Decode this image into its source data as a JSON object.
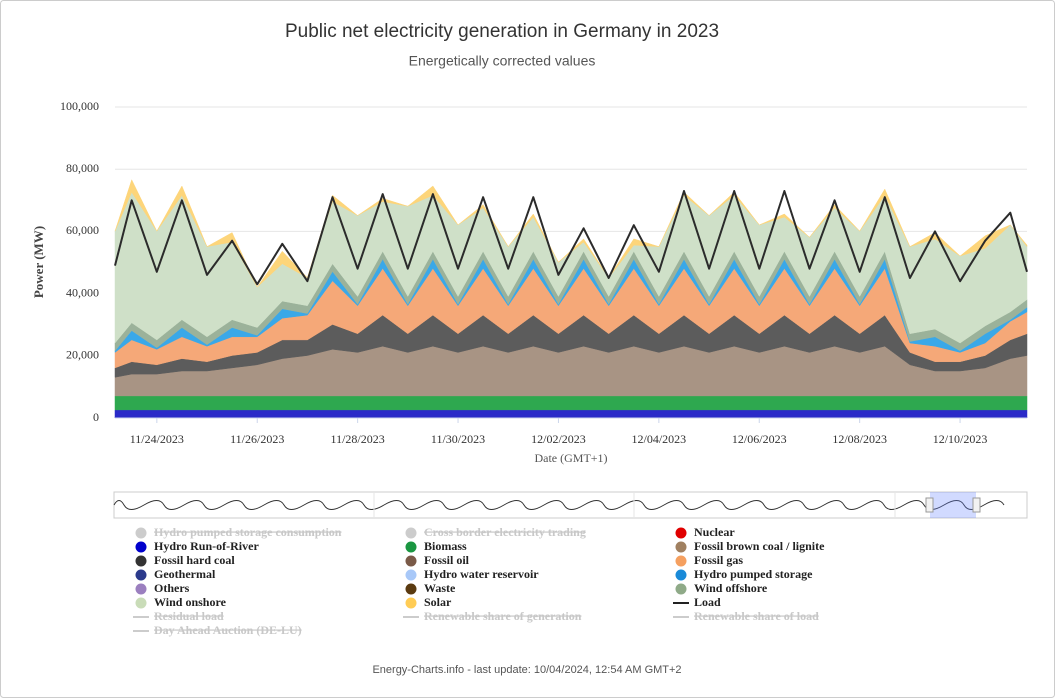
{
  "chart_data": {
    "type": "area",
    "title": "Public net electricity generation in Germany in 2023",
    "subtitle": "Energetically corrected values",
    "y_label": "Power (MW)",
    "x_label": "Date (GMT+1)",
    "credit": "Energy-Charts.info - last update: 10/04/2024, 12:54 AM GMT+2",
    "grid": true,
    "stacked": true,
    "x": [
      "11/23/2023 04:00",
      "11/23/2023 12:00",
      "11/24/2023 00:00",
      "11/24/2023 12:00",
      "11/25/2023 00:00",
      "11/25/2023 12:00",
      "11/26/2023 00:00",
      "11/26/2023 12:00",
      "11/27/2023 00:00",
      "11/27/2023 12:00",
      "11/28/2023 00:00",
      "11/28/2023 12:00",
      "11/29/2023 00:00",
      "11/29/2023 12:00",
      "11/30/2023 00:00",
      "11/30/2023 12:00",
      "12/01/2023 00:00",
      "12/01/2023 12:00",
      "12/02/2023 00:00",
      "12/02/2023 12:00",
      "12/03/2023 00:00",
      "12/03/2023 12:00",
      "12/04/2023 00:00",
      "12/04/2023 12:00",
      "12/05/2023 00:00",
      "12/05/2023 12:00",
      "12/06/2023 00:00",
      "12/06/2023 12:00",
      "12/07/2023 00:00",
      "12/07/2023 12:00",
      "12/08/2023 00:00",
      "12/08/2023 12:00",
      "12/09/2023 00:00",
      "12/09/2023 12:00",
      "12/10/2023 00:00",
      "12/10/2023 12:00",
      "12/11/2023 00:00",
      "12/11/2023 08:00"
    ],
    "xlim": [
      "11/23/2023 04:00",
      "12/11/2023 08:00"
    ],
    "xticks": [
      "11/24/2023",
      "11/26/2023",
      "11/28/2023",
      "11/30/2023",
      "12/02/2023",
      "12/04/2023",
      "12/06/2023",
      "12/08/2023",
      "12/10/2023"
    ],
    "ylim": [
      0,
      100000
    ],
    "yticks": [
      0,
      {
        "value": 20000,
        "label": "20,000"
      },
      {
        "value": 40000,
        "label": "40,000"
      },
      {
        "value": 60000,
        "label": "60,000"
      },
      {
        "value": 80000,
        "label": "80,000"
      },
      {
        "value": 100000,
        "label": "100,000"
      }
    ],
    "series": [
      {
        "name": "Hydro Run-of-River",
        "kind": "area",
        "color": "#2a2ac8",
        "values": [
          2600,
          2600,
          2600,
          2600,
          2600,
          2600,
          2600,
          2600,
          2600,
          2600,
          2600,
          2600,
          2600,
          2600,
          2600,
          2600,
          2600,
          2600,
          2600,
          2600,
          2600,
          2600,
          2600,
          2600,
          2600,
          2600,
          2600,
          2600,
          2600,
          2600,
          2600,
          2600,
          2600,
          2600,
          2600,
          2600,
          2600,
          2600
        ]
      },
      {
        "name": "Biomass",
        "kind": "area",
        "color": "#2ea84f",
        "values": [
          4500,
          4500,
          4500,
          4500,
          4500,
          4500,
          4500,
          4500,
          4500,
          4500,
          4500,
          4500,
          4500,
          4500,
          4500,
          4500,
          4500,
          4500,
          4500,
          4500,
          4500,
          4500,
          4500,
          4500,
          4500,
          4500,
          4500,
          4500,
          4500,
          4500,
          4500,
          4500,
          4500,
          4500,
          4500,
          4500,
          4500,
          4500
        ]
      },
      {
        "name": "Fossil brown coal / lignite",
        "kind": "area",
        "color": "#a89484",
        "values": [
          6000,
          7000,
          7000,
          8000,
          8000,
          9000,
          10000,
          12000,
          13000,
          15000,
          14000,
          16000,
          14000,
          16000,
          14000,
          16000,
          14000,
          16000,
          14000,
          16000,
          14000,
          16000,
          14000,
          16000,
          14000,
          16000,
          14000,
          16000,
          14000,
          16000,
          14000,
          16000,
          10000,
          8000,
          8000,
          9000,
          12000,
          13000
        ]
      },
      {
        "name": "Fossil hard coal",
        "kind": "area",
        "color": "#5c5c5c",
        "values": [
          3000,
          4000,
          3000,
          4000,
          3000,
          4000,
          4000,
          6000,
          5000,
          8000,
          6000,
          10000,
          6000,
          10000,
          6000,
          10000,
          6000,
          10000,
          6000,
          10000,
          6000,
          10000,
          6000,
          10000,
          6000,
          10000,
          6000,
          10000,
          6000,
          10000,
          6000,
          10000,
          4000,
          3000,
          3000,
          4000,
          6000,
          7000
        ]
      },
      {
        "name": "Fossil gas",
        "kind": "area",
        "color": "#f5a878",
        "values": [
          5000,
          7000,
          5000,
          7000,
          5000,
          6000,
          5000,
          7000,
          8000,
          14000,
          9000,
          15000,
          9000,
          15000,
          9000,
          15000,
          9000,
          15000,
          9000,
          15000,
          9000,
          15000,
          9000,
          15000,
          9000,
          15000,
          9000,
          15000,
          9000,
          15000,
          9000,
          15000,
          3000,
          5000,
          3000,
          4000,
          6000,
          7000
        ]
      },
      {
        "name": "Hydro pumped storage",
        "kind": "area",
        "color": "#3aa8e8",
        "values": [
          500,
          3000,
          500,
          3000,
          500,
          3000,
          500,
          3000,
          500,
          3000,
          500,
          3000,
          500,
          3000,
          500,
          3000,
          500,
          3000,
          500,
          3000,
          500,
          3000,
          500,
          3000,
          500,
          3000,
          500,
          3000,
          500,
          3000,
          500,
          3000,
          500,
          3000,
          500,
          3000,
          500,
          1500
        ]
      },
      {
        "name": "Wind offshore",
        "kind": "area",
        "color": "#9bb29a",
        "values": [
          2500,
          2500,
          2500,
          2500,
          2500,
          2500,
          2500,
          2500,
          2500,
          2500,
          2500,
          2500,
          2500,
          2500,
          2500,
          2500,
          2500,
          2500,
          2500,
          2500,
          2500,
          2500,
          2500,
          2500,
          2500,
          2500,
          2500,
          2500,
          2500,
          2500,
          2500,
          2500,
          2500,
          2500,
          2500,
          2500,
          2500,
          2500
        ]
      },
      {
        "name": "Wind onshore",
        "kind": "area",
        "color": "#cfe0c8",
        "values": [
          36000,
          42000,
          35000,
          40000,
          29000,
          25000,
          13000,
          12000,
          9000,
          20000,
          26000,
          16000,
          29000,
          18000,
          23000,
          14000,
          16000,
          11000,
          11000,
          3000,
          6000,
          2000,
          16000,
          18000,
          26000,
          18000,
          23000,
          11000,
          19000,
          14000,
          21000,
          18000,
          28000,
          29000,
          28000,
          25000,
          28000,
          17000
        ]
      },
      {
        "name": "Solar",
        "kind": "area",
        "color": "#fdd57a",
        "values": [
          0,
          4000,
          0,
          3000,
          0,
          3000,
          0,
          4000,
          0,
          2000,
          0,
          1000,
          0,
          3000,
          0,
          1000,
          0,
          1000,
          0,
          1000,
          0,
          2000,
          0,
          1000,
          0,
          1000,
          0,
          1000,
          0,
          1000,
          0,
          2000,
          0,
          2000,
          0,
          4000,
          0,
          500
        ]
      },
      {
        "name": "Load",
        "kind": "line",
        "color": "#2b2b2b",
        "values": [
          49000,
          70000,
          47000,
          70000,
          46000,
          57000,
          43000,
          56000,
          44000,
          71000,
          48000,
          72000,
          48000,
          72000,
          48000,
          71000,
          48000,
          71000,
          46000,
          61000,
          45000,
          62000,
          47000,
          73000,
          48000,
          73000,
          48000,
          73000,
          48000,
          70000,
          47000,
          71000,
          45000,
          60000,
          44000,
          57000,
          66000,
          47000
        ]
      }
    ],
    "legend": [
      {
        "name": "Hydro pumped storage consumption",
        "marker": "circle",
        "color": "#cccccc",
        "hidden": true
      },
      {
        "name": "Cross border electricity trading",
        "marker": "circle",
        "color": "#cccccc",
        "hidden": true
      },
      {
        "name": "Nuclear",
        "marker": "circle",
        "color": "#e00000",
        "hidden": false
      },
      {
        "name": "Hydro Run-of-River",
        "marker": "circle",
        "color": "#0000cc",
        "hidden": false
      },
      {
        "name": "Biomass",
        "marker": "circle",
        "color": "#1a9641",
        "hidden": false
      },
      {
        "name": "Fossil brown coal / lignite",
        "marker": "circle",
        "color": "#a08060",
        "hidden": false
      },
      {
        "name": "Fossil hard coal",
        "marker": "circle",
        "color": "#333333",
        "hidden": false
      },
      {
        "name": "Fossil oil",
        "marker": "circle",
        "color": "#7a5a48",
        "hidden": false
      },
      {
        "name": "Fossil gas",
        "marker": "circle",
        "color": "#f5a060",
        "hidden": false
      },
      {
        "name": "Geothermal",
        "marker": "circle",
        "color": "#2b3a8c",
        "hidden": false
      },
      {
        "name": "Hydro water reservoir",
        "marker": "circle",
        "color": "#a8c8f8",
        "hidden": false
      },
      {
        "name": "Hydro pumped storage",
        "marker": "circle",
        "color": "#1a8ad8",
        "hidden": false
      },
      {
        "name": "Others",
        "marker": "circle",
        "color": "#9b7fbf",
        "hidden": false
      },
      {
        "name": "Waste",
        "marker": "circle",
        "color": "#5a3a10",
        "hidden": false
      },
      {
        "name": "Wind offshore",
        "marker": "circle",
        "color": "#8faa88",
        "hidden": false
      },
      {
        "name": "Wind onshore",
        "marker": "circle",
        "color": "#c9dcb8",
        "hidden": false
      },
      {
        "name": "Solar",
        "marker": "circle",
        "color": "#ffcc55",
        "hidden": false
      },
      {
        "name": "Load",
        "marker": "line",
        "color": "#222222",
        "hidden": false
      },
      {
        "name": "Residual load",
        "marker": "line",
        "color": "#cccccc",
        "hidden": true
      },
      {
        "name": "Renewable share of generation",
        "marker": "line",
        "color": "#cccccc",
        "hidden": true
      },
      {
        "name": "Renewable share of load",
        "marker": "line",
        "color": "#cccccc",
        "hidden": true
      },
      {
        "name": "Day Ahead Auction (DE-LU)",
        "marker": "line",
        "color": "#cccccc",
        "hidden": true
      }
    ]
  }
}
